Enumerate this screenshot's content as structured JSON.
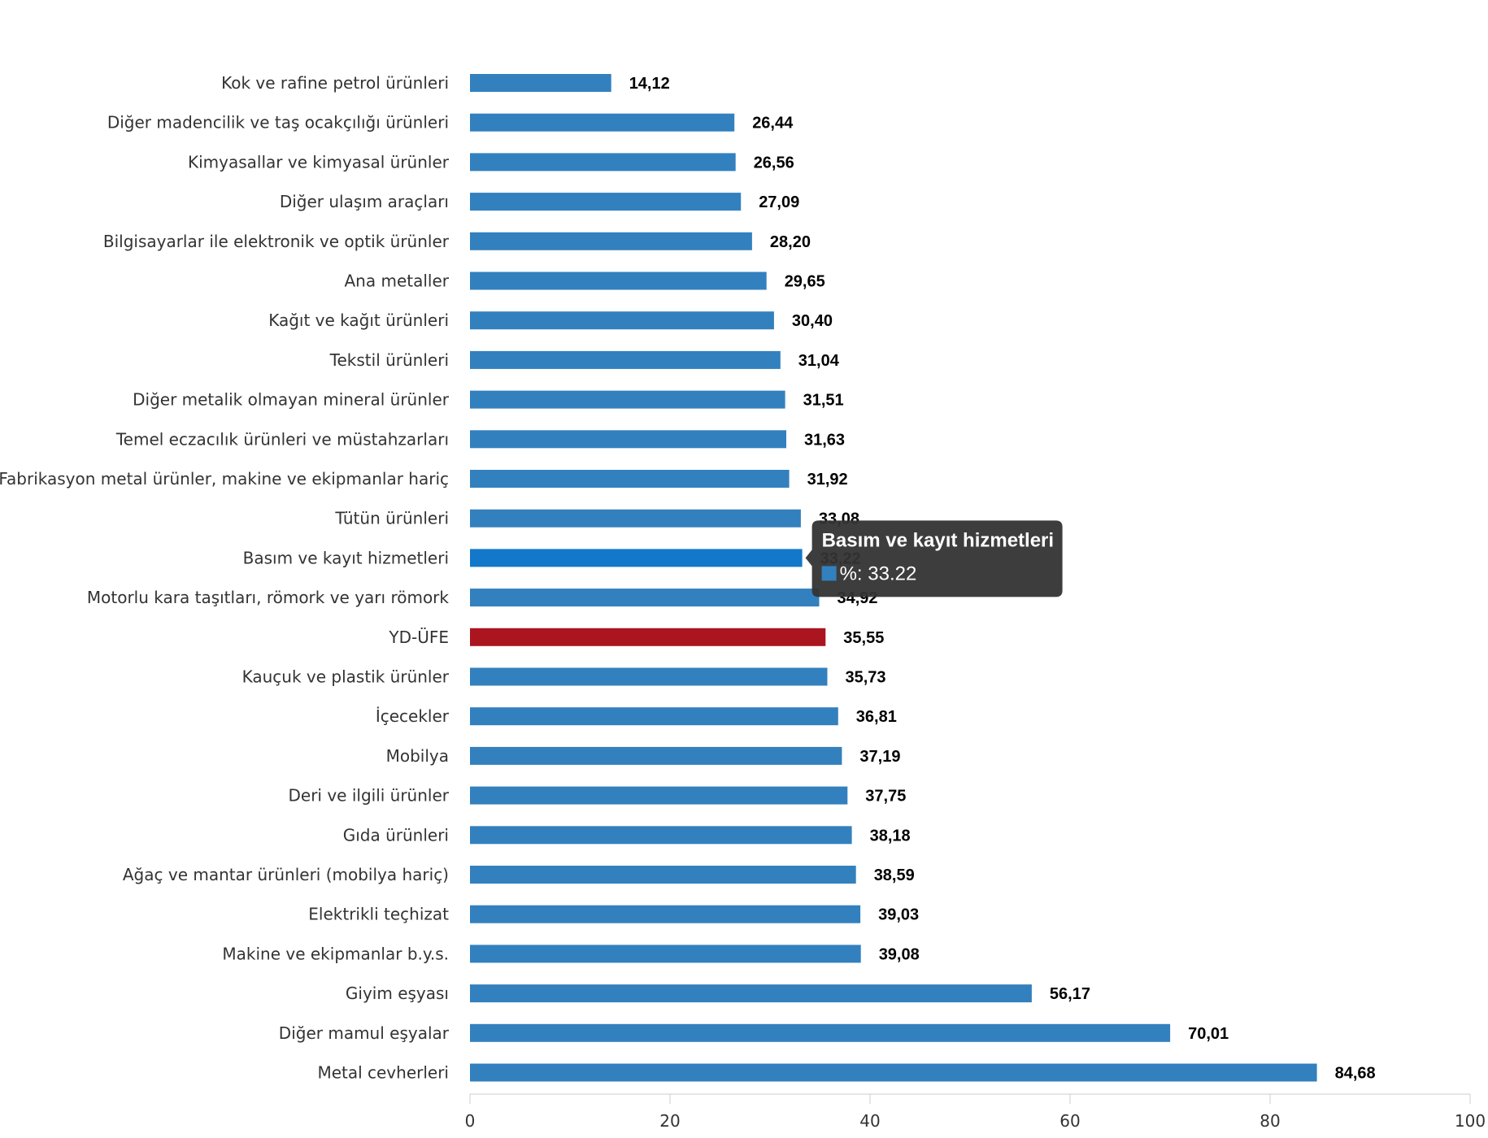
{
  "chart_data": {
    "type": "bar",
    "orientation": "horizontal",
    "categories": [
      "Kok ve rafine petrol ürünleri",
      "Diğer madencilik ve taş ocakçılığı ürünleri",
      "Kimyasallar ve kimyasal ürünler",
      "Diğer ulaşım araçları",
      "Bilgisayarlar ile elektronik ve optik ürünler",
      "Ana metaller",
      "Kağıt ve kağıt ürünleri",
      "Tekstil ürünleri",
      "Diğer metalik olmayan mineral ürünler",
      "Temel eczacılık ürünleri ve müstahzarları",
      "Fabrikasyon metal ürünler, makine ve ekipmanlar hariç",
      "Tütün ürünleri",
      "Basım ve kayıt hizmetleri",
      "Motorlu kara taşıtları, römork ve yarı römork",
      "YD-ÜFE",
      "Kauçuk ve plastik ürünler",
      "İçecekler",
      "Mobilya",
      "Deri ve ilgili ürünler",
      "Gıda ürünleri",
      "Ağaç ve mantar ürünleri (mobilya hariç)",
      "Elektrikli teçhizat",
      "Makine ve ekipmanlar b.y.s.",
      "Giyim eşyası",
      "Diğer mamul eşyalar",
      "Metal cevherleri"
    ],
    "series": [
      {
        "name": "%",
        "values": [
          14.12,
          26.44,
          26.56,
          27.09,
          28.2,
          29.65,
          30.4,
          31.04,
          31.51,
          31.63,
          31.92,
          33.08,
          33.22,
          34.92,
          35.55,
          35.73,
          36.81,
          37.19,
          37.75,
          38.18,
          38.59,
          39.03,
          39.08,
          56.17,
          70.01,
          84.68
        ]
      }
    ],
    "data_labels": [
      "14,12",
      "26,44",
      "26,56",
      "27,09",
      "28,20",
      "29,65",
      "30,40",
      "31,04",
      "31,51",
      "31,63",
      "31,92",
      "33,08",
      "33,22",
      "34,92",
      "35,55",
      "35,73",
      "36,81",
      "37,19",
      "37,75",
      "38,18",
      "38,59",
      "39,03",
      "39,08",
      "56,17",
      "70,01",
      "84,68"
    ],
    "highlight_category": "YD-ÜFE",
    "hovered_category": "Basım ve kayıt hizmetleri",
    "xlim": [
      0,
      100
    ],
    "xticks": [
      "0",
      "20",
      "40",
      "60",
      "80",
      "100"
    ],
    "title": "",
    "xlabel": "",
    "ylabel": "",
    "grid": false,
    "legend": "none",
    "colors": {
      "bar": "#3380be",
      "highlight": "#aa1520",
      "hover": "#1378c9",
      "tooltip_bg": "#333333"
    }
  },
  "tooltip": {
    "title": "Basım ve kayıt hizmetleri",
    "text": "%: 33.22"
  }
}
